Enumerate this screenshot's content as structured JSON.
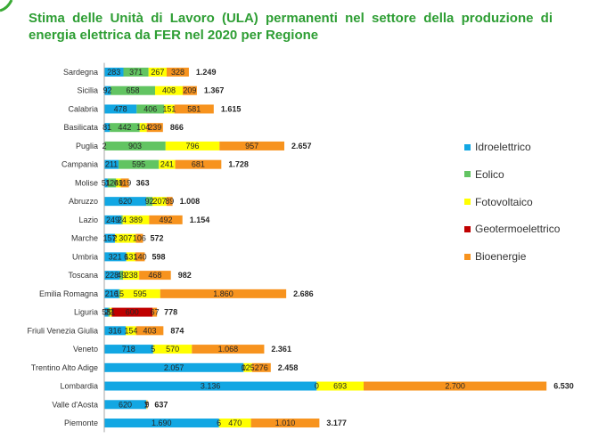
{
  "chart_data": {
    "type": "bar",
    "orientation": "horizontal",
    "stacked": true,
    "title": "Stima delle Unità di Lavoro (ULA) permanenti nel settore della produzione di energia elettrica da FER nel 2020 per Regione",
    "xlim": [
      0,
      7000
    ],
    "grid": false,
    "legend": "right",
    "categories": [
      "Sardegna",
      "Sicilia",
      "Calabria",
      "Basilicata",
      "Puglia",
      "Campania",
      "Molise",
      "Abruzzo",
      "Lazio",
      "Marche",
      "Umbria",
      "Toscana",
      "Emilia Romagna",
      "Liguria",
      "Friuli Venezia Giulia",
      "Veneto",
      "Trentino Alto Adige",
      "Lombardia",
      "Valle d'Aosta",
      "Piemonte"
    ],
    "series": [
      {
        "name": "Idroelettrico",
        "color": "#12a7e3",
        "values": [
          283,
          92,
          478,
          81,
          2,
          211,
          51,
          620,
          249,
          157,
          321,
          228,
          216,
          58,
          316,
          718,
          2057,
          3136,
          620,
          1690
        ]
      },
      {
        "name": "Eolico",
        "color": "#62c462",
        "values": [
          371,
          658,
          406,
          442,
          903,
          595,
          124,
          92,
          24,
          2,
          6,
          49,
          15,
          22,
          null,
          5,
          0,
          0,
          1,
          6
        ]
      },
      {
        "name": "Fotovoltaico",
        "color": "#ffff00",
        "values": [
          267,
          408,
          151,
          104,
          796,
          241,
          69,
          207,
          389,
          307,
          131,
          238,
          595,
          31,
          154,
          570,
          125,
          693,
          7,
          470
        ]
      },
      {
        "name": "Geotermoelettrico",
        "color": "#c00000",
        "values": [
          null,
          null,
          null,
          null,
          null,
          null,
          null,
          null,
          null,
          null,
          null,
          null,
          null,
          600,
          null,
          null,
          null,
          null,
          null,
          null
        ]
      },
      {
        "name": "Bioenergie",
        "color": "#f7931e",
        "values": [
          328,
          209,
          581,
          239,
          957,
          681,
          119,
          89,
          492,
          106,
          140,
          468,
          1860,
          67,
          403,
          1068,
          276,
          2700,
          9,
          1010
        ]
      }
    ],
    "totals": [
      1249,
      1367,
      1615,
      866,
      2657,
      1728,
      363,
      1008,
      1154,
      572,
      598,
      982,
      2686,
      778,
      874,
      2361,
      2458,
      6530,
      637,
      3177
    ]
  }
}
